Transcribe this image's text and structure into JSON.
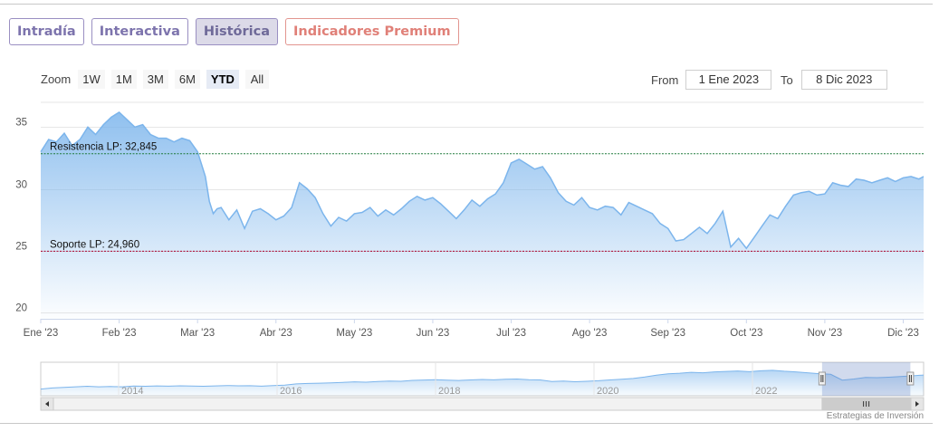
{
  "tabs": [
    "Intradía",
    "Interactiva",
    "Histórica",
    "Indicadores Premium"
  ],
  "active_tab": 2,
  "zoom": {
    "label": "Zoom",
    "buttons": [
      "1W",
      "1M",
      "3M",
      "6M",
      "YTD",
      "All"
    ],
    "active": 4
  },
  "range": {
    "from_label": "From",
    "from_value": "1 Ene 2023",
    "to_label": "To",
    "to_value": "8 Dic 2023"
  },
  "credit": "Estrategias de Inversión",
  "colors": {
    "series_line": "#7cb5ec",
    "resistance_line": "#1f7a3a",
    "support_line": "#b0002a",
    "tab_border": "#9a8fc2",
    "premium": "#e08078"
  },
  "chart_data": {
    "type": "area",
    "x_unit": "months since 1 Jan 2023",
    "xlim": [
      0,
      11.26
    ],
    "ylim": [
      19.5,
      37
    ],
    "y_ticks": [
      20,
      25,
      30,
      35
    ],
    "grid": true,
    "x_ticks": [
      {
        "label": "Ene '23",
        "x": 0
      },
      {
        "label": "Feb '23",
        "x": 1
      },
      {
        "label": "Mar '23",
        "x": 2
      },
      {
        "label": "Abr '23",
        "x": 3
      },
      {
        "label": "May '23",
        "x": 4
      },
      {
        "label": "Jun '23",
        "x": 5
      },
      {
        "label": "Jul '23",
        "x": 6
      },
      {
        "label": "Ago '23",
        "x": 7
      },
      {
        "label": "Sep '23",
        "x": 8
      },
      {
        "label": "Oct '23",
        "x": 9
      },
      {
        "label": "Nov '23",
        "x": 10
      },
      {
        "label": "Dic '23",
        "x": 11
      }
    ],
    "series": [
      {
        "x": [
          0,
          0.1,
          0.2,
          0.3,
          0.4,
          0.5,
          0.6,
          0.7,
          0.8,
          0.9,
          1.0,
          1.1,
          1.2,
          1.3,
          1.4,
          1.5,
          1.6,
          1.7,
          1.8,
          1.9,
          2.0,
          2.1,
          2.15,
          2.2,
          2.25,
          2.3,
          2.4,
          2.5,
          2.6,
          2.7,
          2.8,
          2.9,
          3.0,
          3.1,
          3.2,
          3.3,
          3.4,
          3.5,
          3.6,
          3.7,
          3.8,
          3.9,
          4.0,
          4.1,
          4.2,
          4.3,
          4.4,
          4.5,
          4.6,
          4.7,
          4.8,
          4.9,
          5.0,
          5.1,
          5.2,
          5.3,
          5.4,
          5.5,
          5.6,
          5.7,
          5.8,
          5.9,
          6.0,
          6.1,
          6.2,
          6.3,
          6.4,
          6.5,
          6.6,
          6.7,
          6.8,
          6.9,
          7.0,
          7.1,
          7.2,
          7.3,
          7.4,
          7.5,
          7.6,
          7.7,
          7.8,
          7.9,
          8.0,
          8.1,
          8.2,
          8.3,
          8.4,
          8.5,
          8.6,
          8.7,
          8.8,
          8.9,
          9.0,
          9.1,
          9.2,
          9.3,
          9.4,
          9.5,
          9.6,
          9.7,
          9.8,
          9.9,
          10.0,
          10.1,
          10.2,
          10.3,
          10.4,
          10.5,
          10.6,
          10.7,
          10.8,
          10.9,
          11.0,
          11.1,
          11.2,
          11.26
        ],
        "values": [
          33.0,
          34.0,
          33.8,
          34.5,
          33.5,
          34.0,
          35.0,
          34.4,
          35.2,
          35.8,
          36.2,
          35.6,
          35.0,
          35.2,
          34.4,
          34.1,
          34.1,
          33.8,
          34.1,
          33.9,
          33.0,
          31.0,
          29.0,
          28.0,
          28.4,
          28.5,
          27.5,
          28.3,
          26.8,
          28.2,
          28.4,
          28.0,
          27.5,
          27.8,
          28.5,
          30.5,
          30.0,
          29.3,
          28.0,
          27.0,
          27.7,
          27.4,
          28.0,
          28.1,
          28.5,
          27.8,
          28.3,
          27.9,
          28.4,
          29.0,
          29.4,
          29.1,
          29.3,
          28.8,
          28.2,
          27.6,
          28.3,
          29.1,
          28.6,
          29.2,
          29.6,
          30.5,
          32.1,
          32.4,
          32.0,
          31.6,
          31.8,
          30.9,
          29.7,
          29.0,
          28.7,
          29.3,
          28.5,
          28.3,
          28.6,
          28.5,
          27.9,
          28.9,
          28.6,
          28.3,
          28.0,
          27.2,
          26.8,
          25.8,
          25.9,
          26.4,
          26.9,
          26.4,
          27.2,
          28.2,
          25.3,
          26.0,
          25.2,
          26.1,
          27.0,
          27.9,
          27.6,
          28.6,
          29.5,
          29.7,
          29.8,
          29.5,
          29.6,
          30.5,
          30.3,
          30.2,
          30.8,
          30.7,
          30.5,
          30.7,
          30.9,
          30.6,
          30.9,
          31.0,
          30.8,
          31.0
        ]
      }
    ],
    "reference_lines": [
      {
        "label": "Resistencia LP: 32,845",
        "value": 32.845
      },
      {
        "label": "Soporte LP: 24,960",
        "value": 24.96
      }
    ],
    "navigator": {
      "x_labels": [
        "2014",
        "2016",
        "2018",
        "2020",
        "2022"
      ],
      "values": [
        16,
        17,
        17.5,
        18,
        18.5,
        18,
        18.3,
        18,
        18.7,
        18.5,
        18.8,
        18.6,
        18.9,
        18.7,
        18.5,
        18.8,
        19.2,
        18.9,
        19,
        18.6,
        19.1,
        19.5,
        20.6,
        21,
        21.3,
        21.6,
        22,
        22.5,
        22.2,
        22.8,
        23.2,
        23,
        23.8,
        24.1,
        24.4,
        24,
        23.7,
        24.2,
        24.6,
        24.3,
        24.8,
        25,
        24.4,
        24.2,
        22.8,
        23.2,
        22.6,
        23,
        23.5,
        24.2,
        24.8,
        25.5,
        26.8,
        28.5,
        29.6,
        30.2,
        31,
        30.6,
        31.4,
        31.8,
        32.2,
        31.6,
        32.4,
        32.8,
        32,
        31.4,
        30.6,
        29.8,
        29.2,
        24,
        25,
        26.4,
        26.2,
        26.6,
        27.2,
        27.8,
        28.6
      ],
      "window_start": 0.885,
      "window_end": 0.985
    }
  }
}
